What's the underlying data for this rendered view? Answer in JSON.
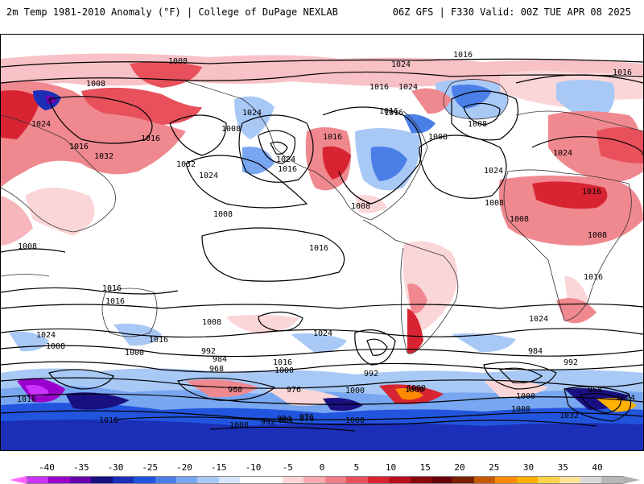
{
  "header": {
    "title_left": "2m Temp 1981-2010 Anomaly (°F) | College of DuPage NEXLAB",
    "title_right": "06Z GFS | F330 Valid: 00Z TUE APR 08 2025"
  },
  "map": {
    "isobar_labels": [
      "1008",
      "1024",
      "1016",
      "1008",
      "1024",
      "1016",
      "1024",
      "1016",
      "1016",
      "1008",
      "1016",
      "1008",
      "1016",
      "1024",
      "1016",
      "1016",
      "1032",
      "1032",
      "1008",
      "1024",
      "1016",
      "1024",
      "1024",
      "1008",
      "1008",
      "1008",
      "1008",
      "1008",
      "1016",
      "1024",
      "1016",
      "1008",
      "1016",
      "1016",
      "1016",
      "1024",
      "1024",
      "1008",
      "1016",
      "1008",
      "1000",
      "992",
      "984",
      "968",
      "960",
      "1016",
      "1000",
      "976",
      "992",
      "1000",
      "984",
      "992",
      "1000",
      "1024",
      "984",
      "976",
      "1016",
      "1000",
      "1000",
      "1008",
      "968",
      "1032",
      "1024",
      "1016",
      "1008",
      "992",
      "984",
      "976",
      "1000"
    ]
  },
  "colorbar": {
    "tick_labels": [
      "-40",
      "-35",
      "-30",
      "-25",
      "-20",
      "-15",
      "-10",
      "-5",
      "0",
      "5",
      "10",
      "15",
      "20",
      "25",
      "30",
      "35",
      "40"
    ],
    "colors": [
      "#cc33ff",
      "#9900cc",
      "#6600aa",
      "#1a0f80",
      "#1c2fb8",
      "#2255dd",
      "#4a7fe8",
      "#78a6f0",
      "#a8c8f6",
      "#d6e6fb",
      "#ffffff",
      "#ffffff",
      "#fbd6d8",
      "#f6aab0",
      "#f07e86",
      "#e8505c",
      "#d82432",
      "#b8101c",
      "#8a0810",
      "#680008",
      "#7a2200",
      "#c65a00",
      "#ff8c00",
      "#ffb000",
      "#ffd24a",
      "#ffe49a",
      "#d8d8d8",
      "#b8b8b8"
    ]
  }
}
